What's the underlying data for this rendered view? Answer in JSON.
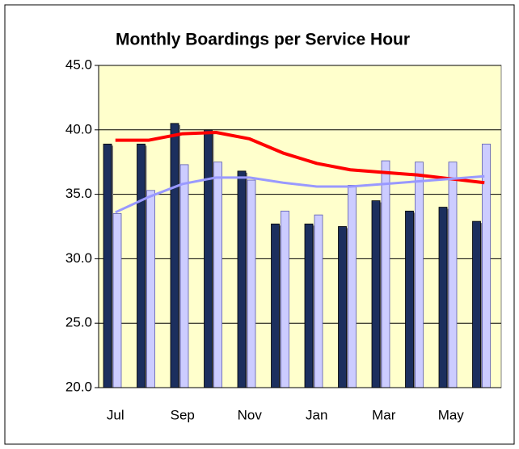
{
  "chart_data": {
    "type": "bar_line",
    "title": "Monthly Boardings per Service Hour",
    "categories": [
      "Jul",
      null,
      "Sep",
      null,
      "Nov",
      null,
      "Jan",
      null,
      "Mar",
      null,
      "May",
      null
    ],
    "series": [
      {
        "kind": "bar",
        "color": "#1c2f5e",
        "values": [
          38.9,
          38.9,
          40.5,
          40.0,
          36.8,
          32.7,
          32.7,
          32.5,
          34.5,
          33.7,
          34.0,
          32.9
        ]
      },
      {
        "kind": "bar",
        "color": "#ccccff",
        "values": [
          33.5,
          35.3,
          37.3,
          37.5,
          36.1,
          33.7,
          33.4,
          35.7,
          37.6,
          37.5,
          37.5,
          38.9
        ]
      },
      {
        "kind": "line",
        "color": "#ff0000",
        "values": [
          39.2,
          39.2,
          39.7,
          39.8,
          39.3,
          38.2,
          37.4,
          36.9,
          36.7,
          36.5,
          36.2,
          35.9
        ]
      },
      {
        "kind": "line",
        "color": "#9999ff",
        "values": [
          33.6,
          34.8,
          35.8,
          36.3,
          36.3,
          35.9,
          35.6,
          35.6,
          35.8,
          36.0,
          36.2,
          36.4
        ]
      }
    ],
    "ylim": [
      20,
      45
    ],
    "yticks": [
      {
        "value": 20,
        "label": "20.0"
      },
      {
        "value": 25,
        "label": "25.0"
      },
      {
        "value": 30,
        "label": "30.0"
      },
      {
        "value": 35,
        "label": "35.0"
      },
      {
        "value": 40,
        "label": "40.0"
      },
      {
        "value": 45,
        "label": "45.0"
      }
    ],
    "grid": true
  }
}
